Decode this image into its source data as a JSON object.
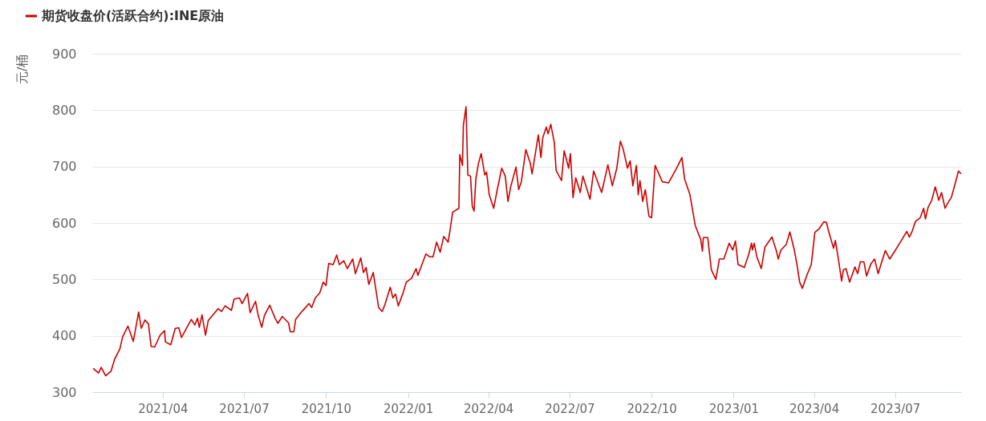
{
  "chart_data": {
    "type": "line",
    "ylabel": "元/桶",
    "legend": "top left",
    "grid": "y",
    "marker": "none",
    "line_style": "solid",
    "xlim": [
      "2021-01-12",
      "2023-09-13"
    ],
    "ylim": [
      300,
      900
    ],
    "yticks": [
      300,
      400,
      500,
      600,
      700,
      800,
      900
    ],
    "xticks": [
      {
        "value": "2021-04-01",
        "label": "2021/04"
      },
      {
        "value": "2021-07-01",
        "label": "2021/07"
      },
      {
        "value": "2021-10-01",
        "label": "2021/10"
      },
      {
        "value": "2022-01-01",
        "label": "2022/01"
      },
      {
        "value": "2022-04-01",
        "label": "2022/04"
      },
      {
        "value": "2022-07-01",
        "label": "2022/07"
      },
      {
        "value": "2022-10-01",
        "label": "2022/10"
      },
      {
        "value": "2023-01-01",
        "label": "2023/01"
      },
      {
        "value": "2023-04-01",
        "label": "2023/04"
      },
      {
        "value": "2023-07-01",
        "label": "2023/07"
      }
    ],
    "x": [
      "2021-01-13",
      "2021-01-19",
      "2021-01-22",
      "2021-01-27",
      "2021-02-02",
      "2021-02-06",
      "2021-02-12",
      "2021-02-15",
      "2021-02-21",
      "2021-02-27",
      "2021-03-05",
      "2021-03-08",
      "2021-03-12",
      "2021-03-16",
      "2021-03-19",
      "2021-03-23",
      "2021-03-29",
      "2021-04-03",
      "2021-04-04",
      "2021-04-10",
      "2021-04-15",
      "2021-04-19",
      "2021-04-22",
      "2021-05-03",
      "2021-05-07",
      "2021-05-10",
      "2021-05-12",
      "2021-05-15",
      "2021-05-19",
      "2021-05-22",
      "2021-06-02",
      "2021-06-06",
      "2021-06-10",
      "2021-06-17",
      "2021-06-20",
      "2021-06-26",
      "2021-06-29",
      "2021-07-05",
      "2021-07-08",
      "2021-07-14",
      "2021-07-17",
      "2021-07-21",
      "2021-07-24",
      "2021-07-30",
      "2021-08-05",
      "2021-08-08",
      "2021-08-13",
      "2021-08-20",
      "2021-08-22",
      "2021-08-26",
      "2021-08-28",
      "2021-09-03",
      "2021-09-07",
      "2021-09-12",
      "2021-09-15",
      "2021-09-19",
      "2021-09-24",
      "2021-09-28",
      "2021-10-01",
      "2021-10-04",
      "2021-10-09",
      "2021-10-13",
      "2021-10-16",
      "2021-10-21",
      "2021-10-25",
      "2021-10-31",
      "2021-11-03",
      "2021-11-09",
      "2021-11-12",
      "2021-11-15",
      "2021-11-18",
      "2021-11-23",
      "2021-11-29",
      "2021-12-03",
      "2021-12-06",
      "2021-12-12",
      "2021-12-15",
      "2021-12-18",
      "2021-12-21",
      "2021-12-26",
      "2021-12-30",
      "2022-01-05",
      "2022-01-10",
      "2022-01-12",
      "2022-01-16",
      "2022-01-21",
      "2022-01-25",
      "2022-01-29",
      "2022-02-02",
      "2022-02-06",
      "2022-02-10",
      "2022-02-15",
      "2022-02-18",
      "2022-02-20",
      "2022-02-27",
      "2022-02-28",
      "2022-03-03",
      "2022-03-04",
      "2022-03-07",
      "2022-03-09",
      "2022-03-12",
      "2022-03-14",
      "2022-03-16",
      "2022-03-18",
      "2022-03-21",
      "2022-03-24",
      "2022-03-28",
      "2022-03-30",
      "2022-04-02",
      "2022-04-07",
      "2022-04-11",
      "2022-04-16",
      "2022-04-20",
      "2022-04-23",
      "2022-04-26",
      "2022-05-02",
      "2022-05-05",
      "2022-05-08",
      "2022-05-13",
      "2022-05-18",
      "2022-05-20",
      "2022-05-23",
      "2022-05-27",
      "2022-05-30",
      "2022-06-01",
      "2022-06-05",
      "2022-06-07",
      "2022-06-10",
      "2022-06-14",
      "2022-06-16",
      "2022-06-22",
      "2022-06-25",
      "2022-06-30",
      "2022-07-02",
      "2022-07-05",
      "2022-07-08",
      "2022-07-13",
      "2022-07-16",
      "2022-07-24",
      "2022-07-28",
      "2022-08-06",
      "2022-08-13",
      "2022-08-18",
      "2022-08-23",
      "2022-08-27",
      "2022-08-30",
      "2022-09-04",
      "2022-09-07",
      "2022-09-10",
      "2022-09-14",
      "2022-09-16",
      "2022-09-18",
      "2022-09-21",
      "2022-09-24",
      "2022-09-28",
      "2022-10-01",
      "2022-10-05",
      "2022-10-13",
      "2022-10-20",
      "2022-10-29",
      "2022-11-04",
      "2022-11-07",
      "2022-11-13",
      "2022-11-19",
      "2022-11-25",
      "2022-11-27",
      "2022-11-28",
      "2022-12-03",
      "2022-12-07",
      "2022-12-12",
      "2022-12-16",
      "2022-12-21",
      "2022-12-27",
      "2022-12-31",
      "2023-01-03",
      "2023-01-06",
      "2023-01-13",
      "2023-01-18",
      "2023-01-21",
      "2023-01-22",
      "2023-01-24",
      "2023-01-27",
      "2023-02-01",
      "2023-02-05",
      "2023-02-13",
      "2023-02-18",
      "2023-02-20",
      "2023-02-23",
      "2023-03-01",
      "2023-03-05",
      "2023-03-10",
      "2023-03-13",
      "2023-03-16",
      "2023-03-19",
      "2023-03-24",
      "2023-03-29",
      "2023-04-02",
      "2023-04-07",
      "2023-04-12",
      "2023-04-15",
      "2023-04-17",
      "2023-04-23",
      "2023-04-25",
      "2023-04-29",
      "2023-05-02",
      "2023-05-04",
      "2023-05-07",
      "2023-05-11",
      "2023-05-17",
      "2023-05-20",
      "2023-05-23",
      "2023-05-27",
      "2023-05-30",
      "2023-06-04",
      "2023-06-08",
      "2023-06-12",
      "2023-06-16",
      "2023-06-20",
      "2023-06-25",
      "2023-07-01",
      "2023-07-08",
      "2023-07-14",
      "2023-07-17",
      "2023-07-20",
      "2023-07-24",
      "2023-07-29",
      "2023-08-02",
      "2023-08-04",
      "2023-08-07",
      "2023-08-11",
      "2023-08-15",
      "2023-08-19",
      "2023-08-22",
      "2023-08-26",
      "2023-08-30",
      "2023-09-02",
      "2023-09-06",
      "2023-09-10",
      "2023-09-13"
    ],
    "series": [
      {
        "name": "期货收盘价(活跃合约):INE原油",
        "color": "#cc0000",
        "values": [
          342,
          334,
          344,
          329,
          337,
          358,
          377,
          398,
          417,
          390,
          442,
          413,
          428,
          421,
          381,
          380,
          401,
          409,
          389,
          384,
          413,
          414,
          397,
          429,
          419,
          431,
          415,
          437,
          401,
          427,
          448,
          443,
          453,
          445,
          465,
          467,
          457,
          475,
          441,
          461,
          436,
          415,
          436,
          454,
          431,
          422,
          434,
          423,
          407,
          407,
          429,
          441,
          448,
          457,
          450,
          467,
          476,
          495,
          489,
          528,
          526,
          543,
          526,
          533,
          519,
          536,
          510,
          538,
          512,
          521,
          491,
          512,
          450,
          443,
          455,
          486,
          467,
          474,
          453,
          474,
          495,
          502,
          519,
          507,
          524,
          545,
          540,
          540,
          566,
          548,
          576,
          566,
          597,
          619,
          626,
          721,
          702,
          773,
          806,
          685,
          683,
          630,
          621,
          678,
          706,
          723,
          685,
          690,
          650,
          626,
          659,
          697,
          683,
          638,
          664,
          699,
          659,
          673,
          730,
          706,
          687,
          716,
          756,
          716,
          751,
          770,
          758,
          775,
          742,
          693,
          675,
          728,
          697,
          723,
          645,
          680,
          654,
          683,
          642,
          692,
          654,
          703,
          666,
          697,
          745,
          732,
          697,
          710,
          666,
          702,
          650,
          675,
          638,
          659,
          612,
          609,
          702,
          673,
          671,
          697,
          716,
          678,
          650,
          595,
          571,
          550,
          574,
          574,
          517,
          500,
          536,
          536,
          564,
          552,
          568,
          526,
          521,
          545,
          564,
          552,
          564,
          540,
          519,
          557,
          575,
          550,
          536,
          552,
          562,
          584,
          552,
          526,
          495,
          484,
          507,
          526,
          583,
          590,
          602,
          601,
          588,
          555,
          569,
          530,
          497,
          517,
          519,
          495,
          522,
          510,
          531,
          531,
          506,
          528,
          536,
          510,
          531,
          551,
          536,
          551,
          569,
          585,
          575,
          585,
          603,
          609,
          626,
          607,
          628,
          640,
          664,
          640,
          654,
          626,
          638,
          645,
          668,
          692,
          687
        ]
      }
    ]
  }
}
